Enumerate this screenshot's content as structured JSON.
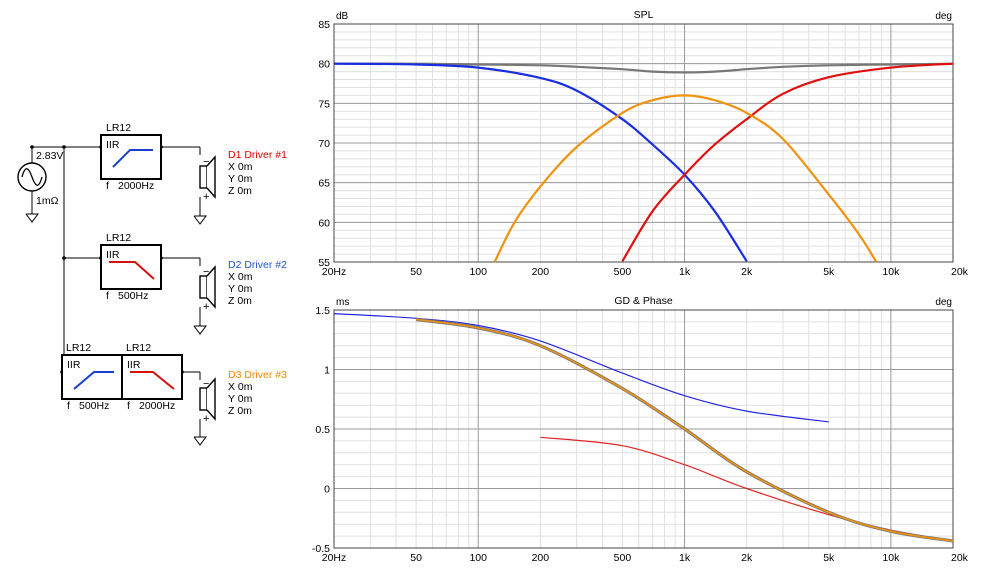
{
  "schematic": {
    "source": {
      "voltage": "2.83V",
      "impedance": "1mΩ"
    },
    "filters": [
      {
        "name": "LR12",
        "type": "IIR",
        "shape": "highpass",
        "freq_label": "f",
        "freq": "2000Hz"
      },
      {
        "name": "LR12",
        "type": "IIR",
        "shape": "lowpass",
        "freq_label": "f",
        "freq": "500Hz"
      },
      {
        "name": "LR12",
        "type": "IIR",
        "shape": "highpass",
        "freq_label": "f",
        "freq": "500Hz"
      },
      {
        "name": "LR12",
        "type": "IIR",
        "shape": "lowpass",
        "freq_label": "f",
        "freq": "2000Hz"
      }
    ],
    "drivers": [
      {
        "label": "D1 Driver #1",
        "color": "#dd0000",
        "x": "X 0m",
        "y": "Y 0m",
        "z": "Z 0m"
      },
      {
        "label": "D2 Driver #2",
        "color": "#2255cc",
        "x": "X 0m",
        "y": "Y 0m",
        "z": "Z 0m"
      },
      {
        "label": "D3 Driver #3",
        "color": "#ee8800",
        "x": "X 0m",
        "y": "Y 0m",
        "z": "Z 0m"
      }
    ],
    "polarity": {
      "minus": "−",
      "plus": "+"
    },
    "colors": {
      "filter_icon_blue": "#1a3fcc",
      "filter_icon_red": "#d41010"
    }
  },
  "chart_data": [
    {
      "type": "line",
      "title": "SPL",
      "ylabel": "dB",
      "y2label": "deg",
      "xscale": "log",
      "xlim": [
        20,
        20000
      ],
      "ylim": [
        55,
        85
      ],
      "grid": true,
      "xticks": [
        20,
        50,
        100,
        200,
        500,
        1000,
        2000,
        5000,
        10000,
        20000
      ],
      "xtick_labels": [
        "20Hz",
        "50",
        "100",
        "200",
        "500",
        "1k",
        "2k",
        "5k",
        "10k",
        "20k"
      ],
      "yticks": [
        55,
        60,
        65,
        70,
        75,
        80,
        85
      ],
      "ytick_labels": [
        "55",
        "60",
        "65",
        "70",
        "75",
        "80",
        "85"
      ],
      "series": [
        {
          "color": "#777777",
          "x": [
            20,
            50,
            100,
            200,
            300,
            500,
            700,
            1000,
            1400,
            2000,
            3000,
            5000,
            10000,
            20000
          ],
          "y": [
            80,
            80,
            79.9,
            79.8,
            79.6,
            79.3,
            79.0,
            78.9,
            79.0,
            79.3,
            79.6,
            79.8,
            79.9,
            80
          ]
        },
        {
          "color": "#1a2ee0",
          "x": [
            20,
            50,
            100,
            200,
            300,
            500,
            700,
            1000,
            1400,
            2000
          ],
          "y": [
            80,
            79.9,
            79.5,
            78.2,
            76.6,
            73.0,
            69.8,
            66.0,
            61.4,
            55.1
          ]
        },
        {
          "color": "#e01010",
          "x": [
            500,
            700,
            1000,
            1400,
            2000,
            3000,
            5000,
            10000,
            20000
          ],
          "y": [
            55.1,
            61.4,
            66.0,
            69.8,
            73.0,
            76.2,
            78.3,
            79.5,
            80
          ]
        },
        {
          "color": "#f0930f",
          "x": [
            120,
            150,
            200,
            300,
            500,
            700,
            1000,
            1400,
            2000,
            3000,
            5000,
            7000,
            8500
          ],
          "y": [
            55.0,
            60.0,
            64.5,
            69.5,
            73.8,
            75.4,
            76.0,
            75.4,
            73.8,
            70.5,
            63.5,
            58.5,
            55.0
          ]
        }
      ]
    },
    {
      "type": "line",
      "title": "GD & Phase",
      "ylabel": "ms",
      "y2label": "deg",
      "xscale": "log",
      "xlim": [
        20,
        20000
      ],
      "ylim": [
        -0.5,
        1.5
      ],
      "grid": true,
      "xticks": [
        20,
        50,
        100,
        200,
        500,
        1000,
        2000,
        5000,
        10000,
        20000
      ],
      "xtick_labels": [
        "20Hz",
        "50",
        "100",
        "200",
        "500",
        "1k",
        "2k",
        "5k",
        "10k",
        "20k"
      ],
      "yticks": [
        -0.5,
        0,
        0.5,
        1,
        1.5
      ],
      "ytick_labels": [
        "-0.5",
        "0",
        "0.5",
        "1",
        "1.5"
      ],
      "series": [
        {
          "color": "#2626dd",
          "width": 1.2,
          "x": [
            20,
            50,
            100,
            200,
            500,
            1000,
            2000,
            5000
          ],
          "y": [
            1.47,
            1.43,
            1.37,
            1.24,
            0.97,
            0.78,
            0.65,
            0.56
          ]
        },
        {
          "color": "#e02525",
          "width": 1.2,
          "x": [
            200,
            500,
            1000,
            2000,
            5000,
            10000,
            20000
          ],
          "y": [
            0.43,
            0.36,
            0.2,
            0.0,
            -0.22,
            -0.35,
            -0.44
          ]
        },
        {
          "color": "#777777",
          "width": 3.2,
          "x": [
            50,
            100,
            200,
            500,
            1000,
            2000,
            5000,
            10000,
            20000
          ],
          "y": [
            1.42,
            1.35,
            1.2,
            0.84,
            0.5,
            0.14,
            -0.2,
            -0.36,
            -0.44
          ]
        },
        {
          "color": "#f0930f",
          "width": 1.6,
          "x": [
            50,
            100,
            200,
            500,
            1000,
            2000,
            5000,
            10000,
            20000
          ],
          "y": [
            1.42,
            1.35,
            1.2,
            0.84,
            0.5,
            0.14,
            -0.2,
            -0.36,
            -0.44
          ]
        }
      ]
    }
  ]
}
